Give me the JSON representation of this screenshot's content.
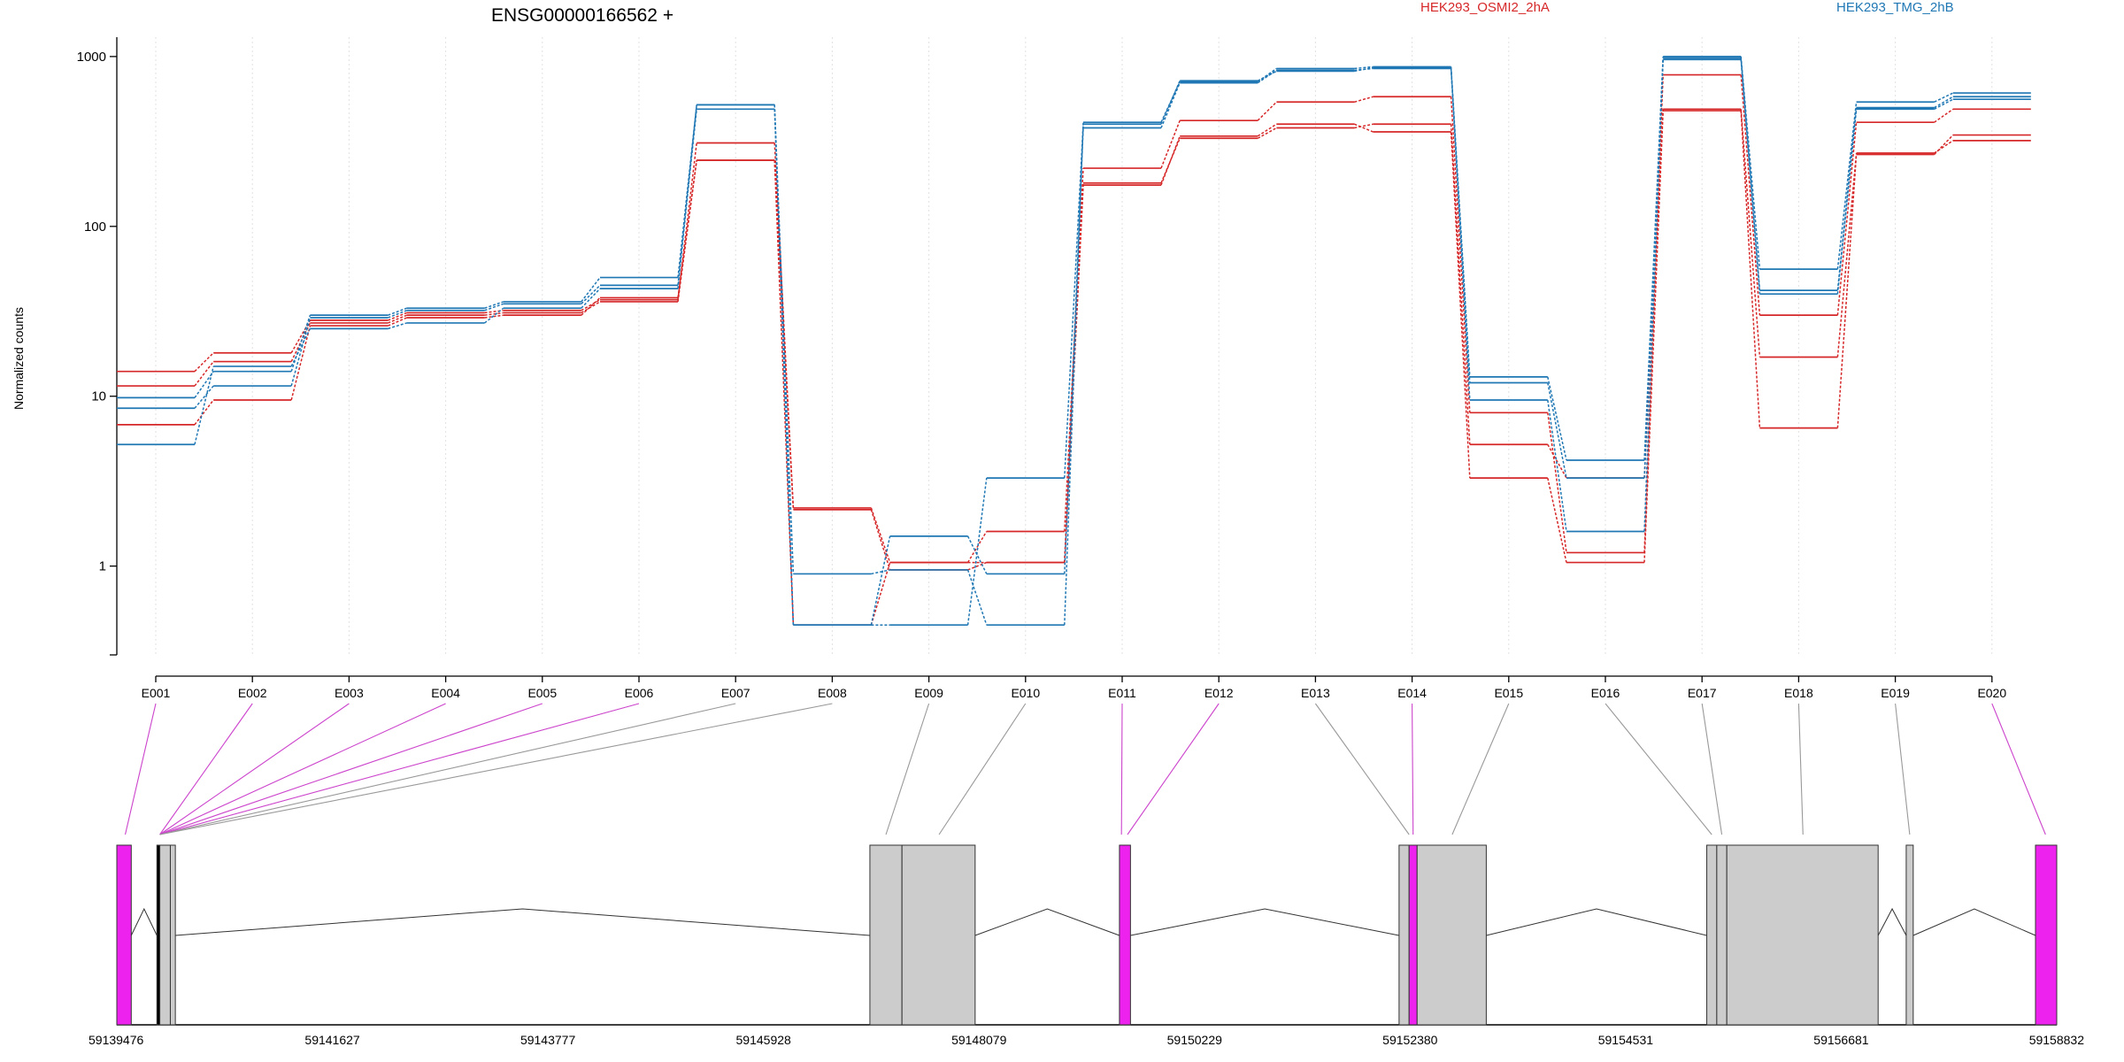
{
  "chart_data": {
    "type": "line",
    "title": "ENSG00000166562 +",
    "ylabel": "Normalized counts",
    "xlabel": "",
    "y_scale": "log",
    "ylim": [
      0.3,
      1300
    ],
    "y_ticks": [
      1,
      10,
      100,
      1000
    ],
    "y_tick_labels": [
      "1",
      "10",
      "100",
      "1000"
    ],
    "grid": "vertical dotted at exon centers",
    "categories": [
      "E001",
      "E002",
      "E003",
      "E004",
      "E005",
      "E006",
      "E007",
      "E008",
      "E009",
      "E010",
      "E011",
      "E012",
      "E013",
      "E014",
      "E015",
      "E016",
      "E017",
      "E018",
      "E019",
      "E020"
    ],
    "legend": [
      {
        "label": "HEK293_OSMI2_2hA",
        "color": "#d62728"
      },
      {
        "label": "HEK293_TMG_2hB",
        "color": "#1f77b4"
      }
    ],
    "series": [
      {
        "group": "HEK293_OSMI2_2hA",
        "color": "#d62728",
        "values": [
          14,
          18,
          28,
          31,
          32,
          37,
          310,
          2.2,
          1.05,
          1.6,
          220,
          420,
          540,
          580,
          8,
          1.2,
          780,
          30,
          410,
          490
        ]
      },
      {
        "group": "HEK293_OSMI2_2hA",
        "color": "#d62728",
        "values": [
          11.5,
          16,
          27,
          30,
          31,
          36,
          245,
          2.15,
          0.95,
          1.05,
          180,
          330,
          380,
          400,
          5.2,
          3.3,
          490,
          17,
          270,
          320
        ]
      },
      {
        "group": "HEK293_OSMI2_2hA",
        "color": "#d62728",
        "values": [
          6.8,
          9.5,
          26,
          29,
          30,
          38,
          245,
          0.45,
          1.05,
          1.05,
          175,
          340,
          400,
          360,
          3.3,
          1.05,
          480,
          6.5,
          265,
          345
        ]
      },
      {
        "group": "HEK293_TMG_2hB",
        "color": "#1f77b4",
        "values": [
          9.8,
          14,
          30,
          33,
          36,
          50,
          520,
          0.9,
          0.95,
          0.45,
          410,
          710,
          850,
          870,
          13,
          4.2,
          1000,
          56,
          540,
          610
        ]
      },
      {
        "group": "HEK293_TMG_2hB",
        "color": "#1f77b4",
        "values": [
          8.5,
          11.5,
          29,
          32,
          35,
          45,
          490,
          0.45,
          1.5,
          0.9,
          380,
          700,
          830,
          850,
          9.5,
          1.6,
          960,
          42,
          500,
          580
        ]
      },
      {
        "group": "HEK293_TMG_2hB",
        "color": "#1f77b4",
        "values": [
          5.2,
          15,
          25,
          27,
          33,
          43,
          520,
          0.45,
          0.45,
          3.3,
          400,
          720,
          820,
          860,
          12,
          3.3,
          980,
          40,
          490,
          560
        ]
      }
    ],
    "gene_model": {
      "coordinate_labels": [
        "59139476",
        "59141627",
        "59143777",
        "59145928",
        "59148079",
        "59150229",
        "59152380",
        "59154531",
        "59156681",
        "59158832"
      ],
      "blocks": [
        {
          "start": 59139476,
          "end": 59139620,
          "color": "#ee22ee"
        },
        {
          "start": 59139876,
          "end": 59139905,
          "color": "#000000"
        },
        {
          "start": 59139905,
          "end": 59140010,
          "color": "#cccccc"
        },
        {
          "start": 59140010,
          "end": 59140060,
          "color": "#cccccc"
        },
        {
          "start": 59146990,
          "end": 59147310,
          "color": "#cccccc"
        },
        {
          "start": 59147310,
          "end": 59148040,
          "color": "#cccccc"
        },
        {
          "start": 59149480,
          "end": 59149590,
          "color": "#ee22ee"
        },
        {
          "start": 59152270,
          "end": 59152370,
          "color": "#cccccc"
        },
        {
          "start": 59152370,
          "end": 59152450,
          "color": "#ee22ee"
        },
        {
          "start": 59152450,
          "end": 59153140,
          "color": "#cccccc"
        },
        {
          "start": 59155340,
          "end": 59155440,
          "color": "#cccccc"
        },
        {
          "start": 59155440,
          "end": 59155540,
          "color": "#cccccc"
        },
        {
          "start": 59155540,
          "end": 59157050,
          "color": "#cccccc"
        },
        {
          "start": 59157330,
          "end": 59157400,
          "color": "#cccccc"
        },
        {
          "start": 59158620,
          "end": 59158832,
          "color": "#ee22ee"
        }
      ],
      "introns": [
        [
          59139620,
          59139876
        ],
        [
          59140060,
          59146990
        ],
        [
          59148040,
          59149480
        ],
        [
          59149590,
          59152270
        ],
        [
          59153140,
          59155340
        ],
        [
          59157050,
          59157330
        ],
        [
          59157400,
          59158620
        ]
      ],
      "exon_links": [
        {
          "exon": "E001",
          "pos": 59139560,
          "color": "#cc44cc"
        },
        {
          "exon": "E002",
          "pos": 59139905,
          "color": "#cc44cc"
        },
        {
          "exon": "E003",
          "pos": 59139905,
          "color": "#cc44cc"
        },
        {
          "exon": "E004",
          "pos": 59139905,
          "color": "#cc44cc"
        },
        {
          "exon": "E005",
          "pos": 59139905,
          "color": "#cc44cc"
        },
        {
          "exon": "E006",
          "pos": 59139905,
          "color": "#cc44cc"
        },
        {
          "exon": "E007",
          "pos": 59139905,
          "color": "#999999"
        },
        {
          "exon": "E008",
          "pos": 59139905,
          "color": "#999999"
        },
        {
          "exon": "E009",
          "pos": 59147150,
          "color": "#999999"
        },
        {
          "exon": "E010",
          "pos": 59147680,
          "color": "#999999"
        },
        {
          "exon": "E011",
          "pos": 59149500,
          "color": "#cc44cc"
        },
        {
          "exon": "E012",
          "pos": 59149560,
          "color": "#cc44cc"
        },
        {
          "exon": "E013",
          "pos": 59152370,
          "color": "#999999"
        },
        {
          "exon": "E014",
          "pos": 59152410,
          "color": "#cc44cc"
        },
        {
          "exon": "E015",
          "pos": 59152800,
          "color": "#999999"
        },
        {
          "exon": "E016",
          "pos": 59155390,
          "color": "#999999"
        },
        {
          "exon": "E017",
          "pos": 59155490,
          "color": "#999999"
        },
        {
          "exon": "E018",
          "pos": 59156300,
          "color": "#999999"
        },
        {
          "exon": "E019",
          "pos": 59157365,
          "color": "#999999"
        },
        {
          "exon": "E020",
          "pos": 59158720,
          "color": "#cc44cc"
        }
      ]
    }
  }
}
